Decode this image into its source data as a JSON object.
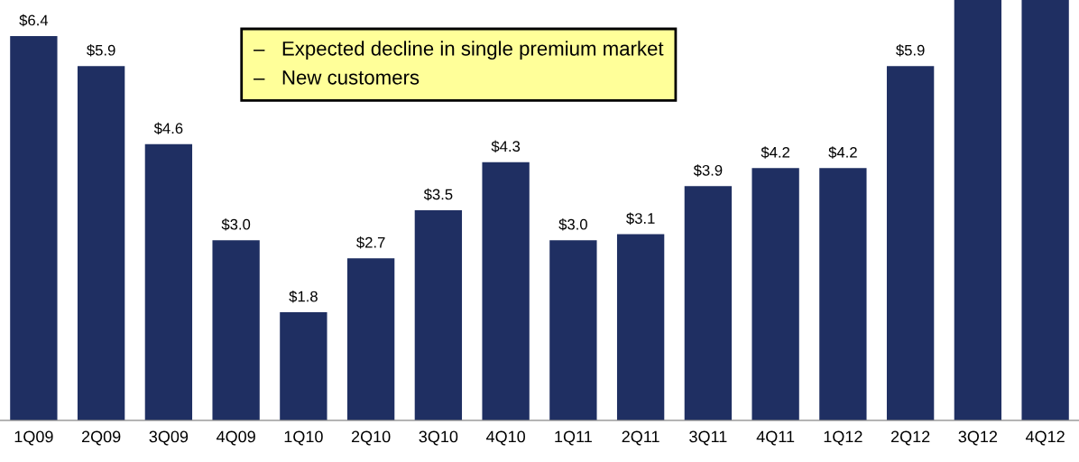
{
  "chart_data": {
    "type": "bar",
    "categories": [
      "1Q09",
      "2Q09",
      "3Q09",
      "4Q09",
      "1Q10",
      "2Q10",
      "3Q10",
      "4Q10",
      "1Q11",
      "2Q11",
      "3Q11",
      "4Q11",
      "1Q12",
      "2Q12",
      "3Q12",
      "4Q12"
    ],
    "values": [
      6.4,
      5.9,
      4.6,
      3.0,
      1.8,
      2.7,
      3.5,
      4.3,
      3.0,
      3.1,
      3.9,
      4.2,
      4.2,
      5.9,
      7.0,
      7.0
    ],
    "value_labels": [
      "$6.4",
      "$5.9",
      "$4.6",
      "$3.0",
      "$1.8",
      "$2.7",
      "$3.5",
      "$4.3",
      "$3.0",
      "$3.1",
      "$3.9",
      "$4.2",
      "$4.2",
      "$5.9",
      null,
      null
    ],
    "color": "#1f2f62",
    "ylim": [
      0,
      7.0
    ],
    "tick_labels": "x",
    "grid": false,
    "legend": false,
    "annotations": [
      "–   Expected decline in single premium market",
      "–   New customers"
    ]
  }
}
